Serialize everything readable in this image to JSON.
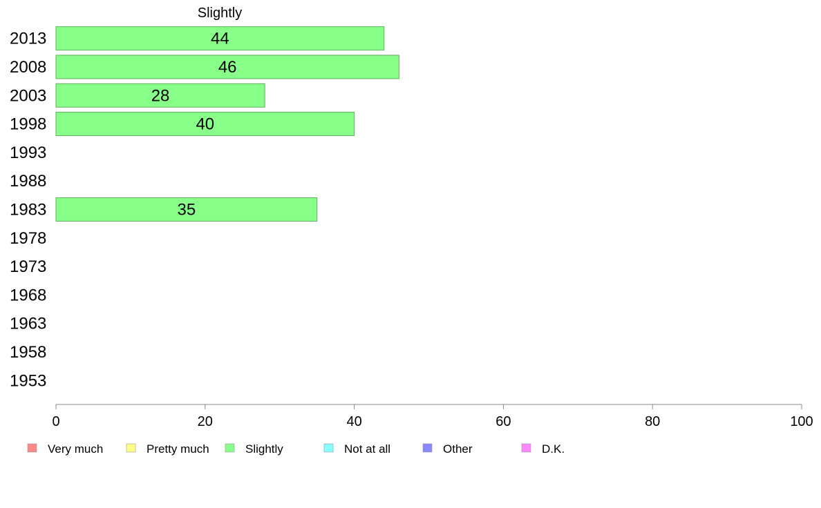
{
  "chart_data": {
    "type": "bar",
    "orientation": "horizontal",
    "title": "Slightly",
    "categories": [
      "2013",
      "2008",
      "2003",
      "1998",
      "1993",
      "1988",
      "1983",
      "1978",
      "1973",
      "1968",
      "1963",
      "1958",
      "1953"
    ],
    "series": [
      {
        "name": "Slightly",
        "color": "#88ff88",
        "values": [
          44,
          46,
          28,
          40,
          null,
          null,
          35,
          null,
          null,
          null,
          null,
          null,
          null
        ]
      }
    ],
    "xlim": [
      0,
      100
    ],
    "xticks": [
      0,
      20,
      40,
      60,
      80,
      100
    ],
    "xtick_labels": [
      "0",
      "20",
      "40",
      "60",
      "80",
      "100"
    ],
    "grid": false,
    "legend_position": "bottom",
    "legend": [
      {
        "label": "Very much",
        "color": "#ff8888"
      },
      {
        "label": "Pretty much",
        "color": "#ffff88"
      },
      {
        "label": "Slightly",
        "color": "#88ff88"
      },
      {
        "label": "Not at all",
        "color": "#88ffff"
      },
      {
        "label": "Other",
        "color": "#8888ff"
      },
      {
        "label": "D.K.",
        "color": "#ff88ff"
      }
    ]
  }
}
